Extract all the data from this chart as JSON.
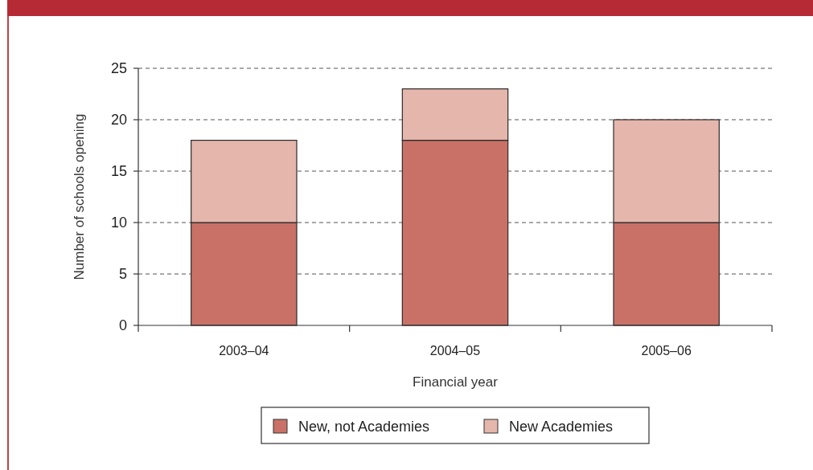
{
  "chart_data": {
    "type": "bar",
    "stacked": true,
    "xlabel": "Financial year",
    "ylabel": "Number of schools opening",
    "categories": [
      "2003–04",
      "2004–05",
      "2005–06"
    ],
    "series": [
      {
        "name": "New, not Academies",
        "color": "#c97166",
        "values": [
          10,
          18,
          10
        ]
      },
      {
        "name": "New Academies",
        "color": "#e4b6ac",
        "values": [
          8,
          5,
          10
        ]
      }
    ],
    "ylim": [
      0,
      25
    ],
    "yticks": [
      0,
      5,
      10,
      15,
      20,
      25
    ],
    "grid": "y",
    "legend": "bottom"
  }
}
